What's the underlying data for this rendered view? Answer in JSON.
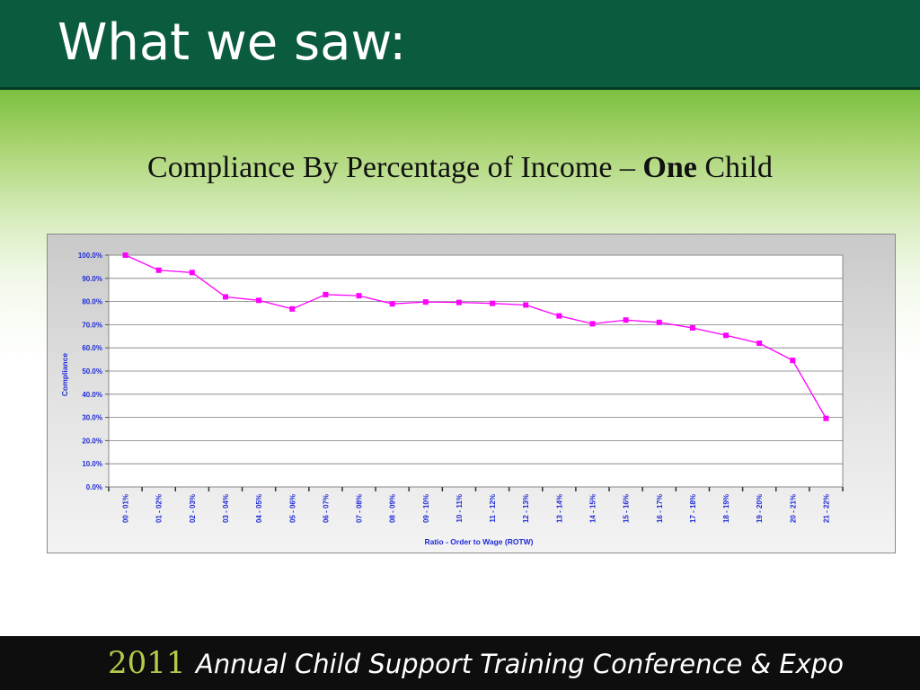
{
  "slide": {
    "title": "What we saw:",
    "subtitle_prefix": "Compliance By Percentage of Income – ",
    "subtitle_bold": "One",
    "subtitle_suffix": " Child"
  },
  "footer": {
    "year": "2011",
    "text": "Annual Child Support Training Conference & Expo"
  },
  "colors": {
    "header_bg": "#0b5c3f",
    "series": "#ff00ff",
    "axis_text": "#1f2bd6",
    "year": "#b8c94a"
  },
  "chart_data": {
    "type": "line",
    "title": "",
    "xlabel": "Ratio - Order to Wage (ROTW)",
    "ylabel": "Compliance",
    "ylim": [
      0,
      100
    ],
    "yticks": [
      "0.0%",
      "10.0%",
      "20.0%",
      "30.0%",
      "40.0%",
      "50.0%",
      "60.0%",
      "70.0%",
      "80.0%",
      "90.0%",
      "100.0%"
    ],
    "grid": true,
    "categories": [
      "00 - 01%",
      "01 - 02%",
      "02 - 03%",
      "03 - 04%",
      "04 - 05%",
      "05 - 06%",
      "06 - 07%",
      "07 - 08%",
      "08 - 09%",
      "09 - 10%",
      "10 - 11%",
      "11 - 12%",
      "12 - 13%",
      "13 - 14%",
      "14 - 15%",
      "15 - 16%",
      "16 - 17%",
      "17 - 18%",
      "18 - 19%",
      "19 - 20%",
      "20 - 21%",
      "21 - 22%"
    ],
    "series": [
      {
        "values": [
          100.0,
          93.5,
          92.5,
          82.0,
          80.5,
          76.8,
          83.0,
          82.5,
          79.0,
          79.8,
          79.6,
          79.2,
          78.5,
          73.8,
          70.4,
          72.0,
          71.0,
          68.6,
          65.4,
          62.0,
          54.6,
          29.6
        ]
      }
    ]
  }
}
